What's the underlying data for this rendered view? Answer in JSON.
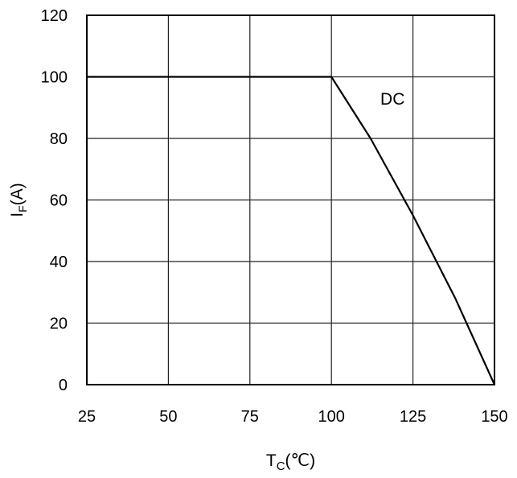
{
  "chart_data": {
    "type": "line",
    "xlabel": {
      "main": "T",
      "sub": "C",
      "unit": "(℃)"
    },
    "ylabel": {
      "main": "I",
      "sub": "F",
      "unit": "(A)"
    },
    "xlim": [
      25,
      150
    ],
    "ylim": [
      0,
      120
    ],
    "xticks": [
      "25",
      "50",
      "75",
      "100",
      "125",
      "150"
    ],
    "yticks": [
      "0",
      "20",
      "40",
      "60",
      "80",
      "100",
      "120"
    ],
    "grid": true,
    "series": [
      {
        "name": "DC",
        "x": [
          25,
          100,
          112,
          125,
          138,
          150
        ],
        "y": [
          100,
          100,
          80,
          55,
          28,
          0
        ]
      }
    ],
    "annotations": [
      {
        "text": "DC",
        "x": 115,
        "y": 91
      }
    ]
  }
}
